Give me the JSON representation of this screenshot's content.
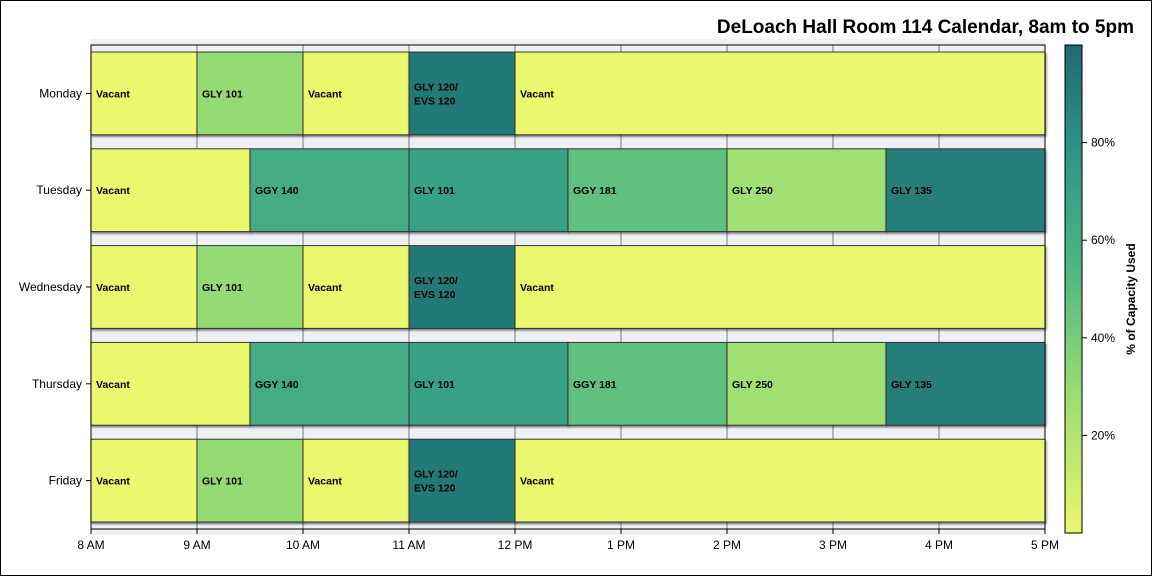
{
  "chart_data": {
    "type": "bar",
    "subtype": "horizontal-timeline",
    "title": "DeLoach Hall Room 114 Calendar, 8am to 5pm",
    "x_ticks": [
      "8 AM",
      "9 AM",
      "10 AM",
      "11 AM",
      "12 PM",
      "1 PM",
      "2 PM",
      "3 PM",
      "4 PM",
      "5 PM"
    ],
    "xlim": [
      8,
      17
    ],
    "colorbar": {
      "label": "% of Capacity Used",
      "ticks": [
        "20%",
        "40%",
        "60%",
        "80%"
      ],
      "tick_values": [
        20,
        40,
        60,
        80
      ],
      "range": [
        0,
        100
      ]
    },
    "days": [
      {
        "name": "Monday",
        "blocks": [
          {
            "label": "Vacant",
            "start": 8,
            "end": 9,
            "capacity": 0
          },
          {
            "label": "GLY 101",
            "start": 9,
            "end": 10,
            "capacity": 30
          },
          {
            "label": "Vacant",
            "start": 10,
            "end": 11,
            "capacity": 0
          },
          {
            "label": "GLY 120/\nEVS 120",
            "start": 11,
            "end": 12,
            "capacity": 92
          },
          {
            "label": "Vacant",
            "start": 12,
            "end": 17,
            "capacity": 0
          }
        ]
      },
      {
        "name": "Tuesday",
        "blocks": [
          {
            "label": "Vacant",
            "start": 8,
            "end": 9.5,
            "capacity": 0
          },
          {
            "label": "GGY 140",
            "start": 9.5,
            "end": 11,
            "capacity": 62
          },
          {
            "label": "GLY 101",
            "start": 11,
            "end": 12.5,
            "capacity": 70
          },
          {
            "label": "GGY 181",
            "start": 12.5,
            "end": 14,
            "capacity": 48
          },
          {
            "label": "GLY 250",
            "start": 14,
            "end": 15.5,
            "capacity": 26
          },
          {
            "label": "GLY 135",
            "start": 15.5,
            "end": 17,
            "capacity": 90
          }
        ]
      },
      {
        "name": "Wednesday",
        "blocks": [
          {
            "label": "Vacant",
            "start": 8,
            "end": 9,
            "capacity": 0
          },
          {
            "label": "GLY 101",
            "start": 9,
            "end": 10,
            "capacity": 30
          },
          {
            "label": "Vacant",
            "start": 10,
            "end": 11,
            "capacity": 0
          },
          {
            "label": "GLY 120/\nEVS 120",
            "start": 11,
            "end": 12,
            "capacity": 92
          },
          {
            "label": "Vacant",
            "start": 12,
            "end": 17,
            "capacity": 0
          }
        ]
      },
      {
        "name": "Thursday",
        "blocks": [
          {
            "label": "Vacant",
            "start": 8,
            "end": 9.5,
            "capacity": 0
          },
          {
            "label": "GGY 140",
            "start": 9.5,
            "end": 11,
            "capacity": 62
          },
          {
            "label": "GLY 101",
            "start": 11,
            "end": 12.5,
            "capacity": 70
          },
          {
            "label": "GGY 181",
            "start": 12.5,
            "end": 14,
            "capacity": 48
          },
          {
            "label": "GLY 250",
            "start": 14,
            "end": 15.5,
            "capacity": 26
          },
          {
            "label": "GLY 135",
            "start": 15.5,
            "end": 17,
            "capacity": 90
          }
        ]
      },
      {
        "name": "Friday",
        "blocks": [
          {
            "label": "Vacant",
            "start": 8,
            "end": 9,
            "capacity": 0
          },
          {
            "label": "GLY 101",
            "start": 9,
            "end": 10,
            "capacity": 30
          },
          {
            "label": "Vacant",
            "start": 10,
            "end": 11,
            "capacity": 0
          },
          {
            "label": "GLY 120/\nEVS 120",
            "start": 11,
            "end": 12,
            "capacity": 92
          },
          {
            "label": "Vacant",
            "start": 12,
            "end": 17,
            "capacity": 0
          }
        ]
      }
    ]
  }
}
